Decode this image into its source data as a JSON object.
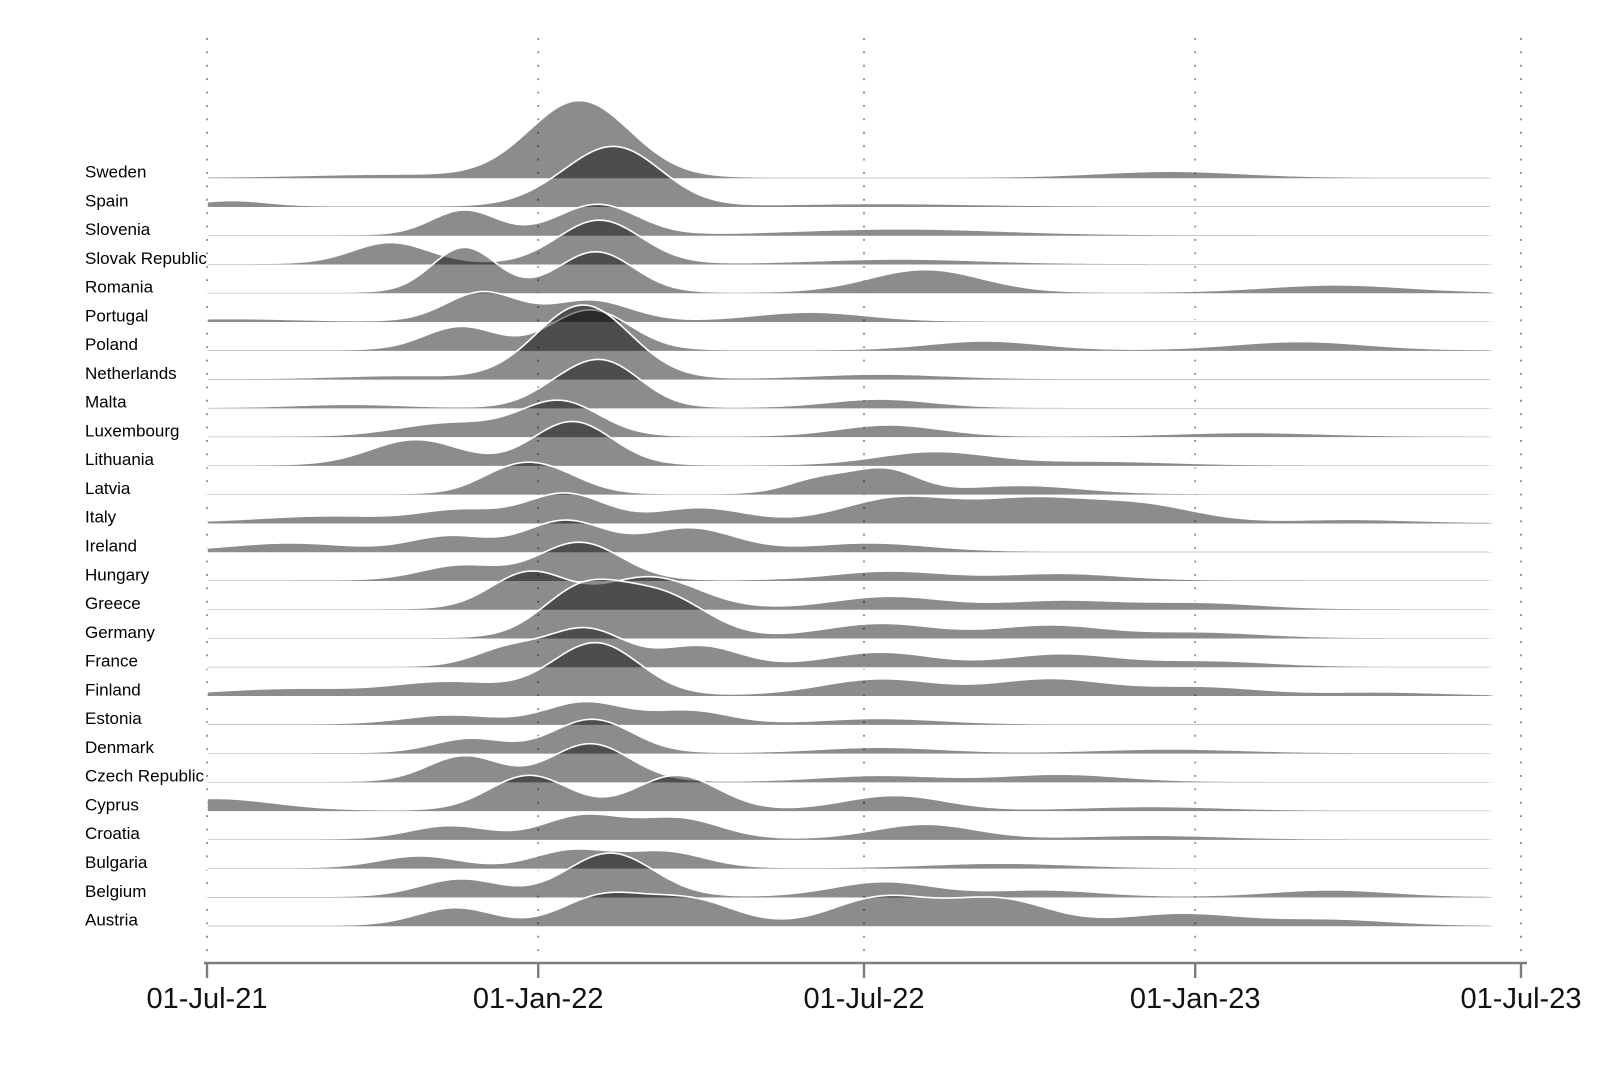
{
  "chart_data": {
    "type": "area",
    "subtype": "ridgeline-density",
    "title": "",
    "xlabel": "",
    "ylabel": "",
    "grid": "dotted-vertical",
    "legend": "none",
    "fill_color": "#000000",
    "fill_opacity": 0.45,
    "outline_color": "#ffffff",
    "axis_color": "#7d7d7d",
    "gridline_color": "#8f8f8f",
    "x_axis": {
      "tick_labels": [
        "01-Jul-21",
        "01-Jan-22",
        "01-Jul-22",
        "01-Jan-23",
        "01-Jul-23"
      ],
      "tick_dates": [
        "2021-07-01",
        "2022-01-01",
        "2022-07-01",
        "2023-01-01",
        "2023-07-01"
      ],
      "range_days": 730
    },
    "y_axis": {
      "order": "top-to-bottom",
      "height_units": "row-heights (1.0 = vertical spacing between two country baselines)"
    },
    "baseline_density": 0.07,
    "series": [
      {
        "label": "Sweden",
        "peaks": [
          {
            "date": "2021-10-11",
            "h": 0.1,
            "sd": 44
          },
          {
            "date": "2022-01-24",
            "h": 2.65,
            "sd": 28
          },
          {
            "date": "2022-12-18",
            "h": 0.2,
            "sd": 39
          }
        ]
      },
      {
        "label": "Spain",
        "peaks": [
          {
            "date": "2021-07-15",
            "h": 0.18,
            "sd": 19
          },
          {
            "date": "2022-01-13",
            "h": 0.3,
            "sd": 22
          },
          {
            "date": "2022-02-14",
            "h": 1.95,
            "sd": 25
          },
          {
            "date": "2022-07-10",
            "h": 0.08,
            "sd": 50
          }
        ]
      },
      {
        "label": "Slovenia",
        "peaks": [
          {
            "date": "2021-11-21",
            "h": 0.85,
            "sd": 18
          },
          {
            "date": "2022-02-03",
            "h": 1.05,
            "sd": 22
          },
          {
            "date": "2022-07-21",
            "h": 0.2,
            "sd": 56
          }
        ]
      },
      {
        "label": "Slovak Republic",
        "peaks": [
          {
            "date": "2021-10-11",
            "h": 0.72,
            "sd": 21
          },
          {
            "date": "2022-02-04",
            "h": 1.5,
            "sd": 23
          },
          {
            "date": "2022-07-21",
            "h": 0.15,
            "sd": 44
          }
        ]
      },
      {
        "label": "Romania",
        "peaks": [
          {
            "date": "2021-11-21",
            "h": 1.55,
            "sd": 18
          },
          {
            "date": "2022-02-02",
            "h": 1.4,
            "sd": 21
          },
          {
            "date": "2022-08-04",
            "h": 0.78,
            "sd": 31
          },
          {
            "date": "2023-03-20",
            "h": 0.25,
            "sd": 39
          }
        ]
      },
      {
        "label": "Portugal",
        "peaks": [
          {
            "date": "2021-07-14",
            "h": 0.08,
            "sd": 33
          },
          {
            "date": "2021-12-01",
            "h": 1.0,
            "sd": 20
          },
          {
            "date": "2022-01-30",
            "h": 0.72,
            "sd": 22
          },
          {
            "date": "2022-06-01",
            "h": 0.3,
            "sd": 31
          }
        ]
      },
      {
        "label": "Poland",
        "peaks": [
          {
            "date": "2021-11-19",
            "h": 0.8,
            "sd": 20
          },
          {
            "date": "2022-01-30",
            "h": 1.38,
            "sd": 22
          },
          {
            "date": "2022-09-06",
            "h": 0.3,
            "sd": 31
          },
          {
            "date": "2023-02-28",
            "h": 0.28,
            "sd": 36
          }
        ]
      },
      {
        "label": "Netherlands",
        "peaks": [
          {
            "date": "2021-10-16",
            "h": 0.1,
            "sd": 33
          },
          {
            "date": "2022-01-26",
            "h": 2.55,
            "sd": 26
          },
          {
            "date": "2022-07-10",
            "h": 0.15,
            "sd": 36
          }
        ]
      },
      {
        "label": "Malta",
        "peaks": [
          {
            "date": "2021-09-18",
            "h": 0.1,
            "sd": 28
          },
          {
            "date": "2022-01-13",
            "h": 0.5,
            "sd": 18
          },
          {
            "date": "2022-02-08",
            "h": 1.45,
            "sd": 20
          },
          {
            "date": "2022-07-10",
            "h": 0.28,
            "sd": 28
          }
        ]
      },
      {
        "label": "Luxembourg",
        "peaks": [
          {
            "date": "2021-11-13",
            "h": 0.45,
            "sd": 28
          },
          {
            "date": "2022-01-13",
            "h": 1.2,
            "sd": 22
          },
          {
            "date": "2022-07-15",
            "h": 0.38,
            "sd": 28
          },
          {
            "date": "2023-01-31",
            "h": 0.12,
            "sd": 39
          }
        ]
      },
      {
        "label": "Lithuania",
        "peaks": [
          {
            "date": "2021-10-25",
            "h": 0.87,
            "sd": 25
          },
          {
            "date": "2022-01-20",
            "h": 1.5,
            "sd": 22
          },
          {
            "date": "2022-08-09",
            "h": 0.45,
            "sd": 31
          },
          {
            "date": "2022-11-09",
            "h": 0.12,
            "sd": 39
          }
        ]
      },
      {
        "label": "Latvia",
        "peaks": [
          {
            "date": "2021-12-14",
            "h": 0.55,
            "sd": 18
          },
          {
            "date": "2022-01-06",
            "h": 0.75,
            "sd": 20
          },
          {
            "date": "2022-06-07",
            "h": 0.5,
            "sd": 18
          },
          {
            "date": "2022-07-13",
            "h": 0.8,
            "sd": 18
          },
          {
            "date": "2022-09-26",
            "h": 0.28,
            "sd": 33
          }
        ]
      },
      {
        "label": "Italy",
        "peaks": [
          {
            "date": "2021-09-07",
            "h": 0.22,
            "sd": 39
          },
          {
            "date": "2021-11-19",
            "h": 0.4,
            "sd": 22
          },
          {
            "date": "2022-01-16",
            "h": 1.0,
            "sd": 22
          },
          {
            "date": "2022-04-01",
            "h": 0.5,
            "sd": 25
          },
          {
            "date": "2022-07-21",
            "h": 0.85,
            "sd": 31
          },
          {
            "date": "2022-10-01",
            "h": 0.75,
            "sd": 31
          },
          {
            "date": "2022-12-01",
            "h": 0.6,
            "sd": 31
          },
          {
            "date": "2023-03-28",
            "h": 0.1,
            "sd": 33
          }
        ]
      },
      {
        "label": "Ireland",
        "peaks": [
          {
            "date": "2021-08-16",
            "h": 0.28,
            "sd": 33
          },
          {
            "date": "2021-11-13",
            "h": 0.52,
            "sd": 22
          },
          {
            "date": "2022-01-16",
            "h": 1.05,
            "sd": 22
          },
          {
            "date": "2022-03-26",
            "h": 0.8,
            "sd": 25
          },
          {
            "date": "2022-07-04",
            "h": 0.28,
            "sd": 33
          }
        ]
      },
      {
        "label": "Hungary",
        "peaks": [
          {
            "date": "2021-11-19",
            "h": 0.5,
            "sd": 22
          },
          {
            "date": "2022-01-24",
            "h": 1.3,
            "sd": 23
          },
          {
            "date": "2022-07-15",
            "h": 0.3,
            "sd": 31
          },
          {
            "date": "2022-10-18",
            "h": 0.22,
            "sd": 33
          }
        ]
      },
      {
        "label": "Greece",
        "peaks": [
          {
            "date": "2021-12-27",
            "h": 1.25,
            "sd": 21
          },
          {
            "date": "2022-03-04",
            "h": 1.1,
            "sd": 27
          },
          {
            "date": "2022-07-15",
            "h": 0.42,
            "sd": 31
          },
          {
            "date": "2022-10-18",
            "h": 0.28,
            "sd": 33
          },
          {
            "date": "2023-01-04",
            "h": 0.2,
            "sd": 33
          }
        ]
      },
      {
        "label": "Germany",
        "peaks": [
          {
            "date": "2022-01-25",
            "h": 1.6,
            "sd": 22
          },
          {
            "date": "2022-03-10",
            "h": 1.45,
            "sd": 25
          },
          {
            "date": "2022-07-10",
            "h": 0.48,
            "sd": 31
          },
          {
            "date": "2022-10-12",
            "h": 0.42,
            "sd": 31
          },
          {
            "date": "2023-01-04",
            "h": 0.18,
            "sd": 33
          }
        ]
      },
      {
        "label": "France",
        "peaks": [
          {
            "date": "2021-12-14",
            "h": 0.55,
            "sd": 18
          },
          {
            "date": "2022-01-27",
            "h": 1.3,
            "sd": 22
          },
          {
            "date": "2022-04-01",
            "h": 0.7,
            "sd": 22
          },
          {
            "date": "2022-07-10",
            "h": 0.48,
            "sd": 29
          },
          {
            "date": "2022-10-18",
            "h": 0.42,
            "sd": 31
          },
          {
            "date": "2023-01-09",
            "h": 0.18,
            "sd": 33
          }
        ]
      },
      {
        "label": "Finland",
        "peaks": [
          {
            "date": "2021-08-16",
            "h": 0.22,
            "sd": 39
          },
          {
            "date": "2021-11-13",
            "h": 0.45,
            "sd": 31
          },
          {
            "date": "2022-02-02",
            "h": 1.8,
            "sd": 24
          },
          {
            "date": "2022-07-10",
            "h": 0.55,
            "sd": 32
          },
          {
            "date": "2022-10-12",
            "h": 0.55,
            "sd": 32
          },
          {
            "date": "2023-01-04",
            "h": 0.28,
            "sd": 33
          },
          {
            "date": "2023-04-14",
            "h": 0.1,
            "sd": 33
          }
        ]
      },
      {
        "label": "Estonia",
        "peaks": [
          {
            "date": "2021-11-13",
            "h": 0.3,
            "sd": 25
          },
          {
            "date": "2022-01-27",
            "h": 0.75,
            "sd": 22
          },
          {
            "date": "2022-03-26",
            "h": 0.45,
            "sd": 22
          },
          {
            "date": "2022-07-10",
            "h": 0.18,
            "sd": 33
          }
        ]
      },
      {
        "label": "Denmark",
        "peaks": [
          {
            "date": "2021-11-24",
            "h": 0.48,
            "sd": 20
          },
          {
            "date": "2022-01-31",
            "h": 1.15,
            "sd": 22
          },
          {
            "date": "2022-07-10",
            "h": 0.18,
            "sd": 33
          },
          {
            "date": "2022-12-18",
            "h": 0.12,
            "sd": 39
          }
        ]
      },
      {
        "label": "Czech Republic",
        "peaks": [
          {
            "date": "2021-11-21",
            "h": 0.88,
            "sd": 20
          },
          {
            "date": "2022-01-30",
            "h": 1.3,
            "sd": 22
          },
          {
            "date": "2022-07-10",
            "h": 0.2,
            "sd": 33
          },
          {
            "date": "2022-10-18",
            "h": 0.24,
            "sd": 33
          }
        ]
      },
      {
        "label": "Cyprus",
        "peaks": [
          {
            "date": "2021-07-05",
            "h": 0.4,
            "sd": 33
          },
          {
            "date": "2021-12-27",
            "h": 1.2,
            "sd": 22
          },
          {
            "date": "2022-03-19",
            "h": 1.2,
            "sd": 23
          },
          {
            "date": "2022-07-18",
            "h": 0.5,
            "sd": 28
          },
          {
            "date": "2022-12-07",
            "h": 0.12,
            "sd": 39
          }
        ]
      },
      {
        "label": "Croatia",
        "peaks": [
          {
            "date": "2021-11-13",
            "h": 0.45,
            "sd": 22
          },
          {
            "date": "2022-01-26",
            "h": 0.8,
            "sd": 22
          },
          {
            "date": "2022-03-20",
            "h": 0.7,
            "sd": 23
          },
          {
            "date": "2022-08-04",
            "h": 0.5,
            "sd": 28
          },
          {
            "date": "2022-12-07",
            "h": 0.12,
            "sd": 39
          }
        ]
      },
      {
        "label": "Bulgaria",
        "peaks": [
          {
            "date": "2021-10-27",
            "h": 0.4,
            "sd": 22
          },
          {
            "date": "2022-01-20",
            "h": 0.6,
            "sd": 21
          },
          {
            "date": "2022-03-12",
            "h": 0.55,
            "sd": 22
          },
          {
            "date": "2022-09-15",
            "h": 0.15,
            "sd": 39
          }
        ]
      },
      {
        "label": "Belgium",
        "peaks": [
          {
            "date": "2021-11-19",
            "h": 0.6,
            "sd": 22
          },
          {
            "date": "2022-02-10",
            "h": 1.5,
            "sd": 24
          },
          {
            "date": "2022-07-12",
            "h": 0.5,
            "sd": 28
          },
          {
            "date": "2022-10-08",
            "h": 0.22,
            "sd": 31
          },
          {
            "date": "2023-03-17",
            "h": 0.22,
            "sd": 33
          }
        ]
      },
      {
        "label": "Austria",
        "peaks": [
          {
            "date": "2021-11-16",
            "h": 0.6,
            "sd": 21
          },
          {
            "date": "2022-02-05",
            "h": 0.95,
            "sd": 22
          },
          {
            "date": "2022-03-25",
            "h": 0.9,
            "sd": 25
          },
          {
            "date": "2022-07-11",
            "h": 0.95,
            "sd": 27
          },
          {
            "date": "2022-09-13",
            "h": 0.9,
            "sd": 28
          },
          {
            "date": "2022-12-24",
            "h": 0.4,
            "sd": 33
          },
          {
            "date": "2023-03-17",
            "h": 0.2,
            "sd": 33
          }
        ]
      }
    ]
  }
}
